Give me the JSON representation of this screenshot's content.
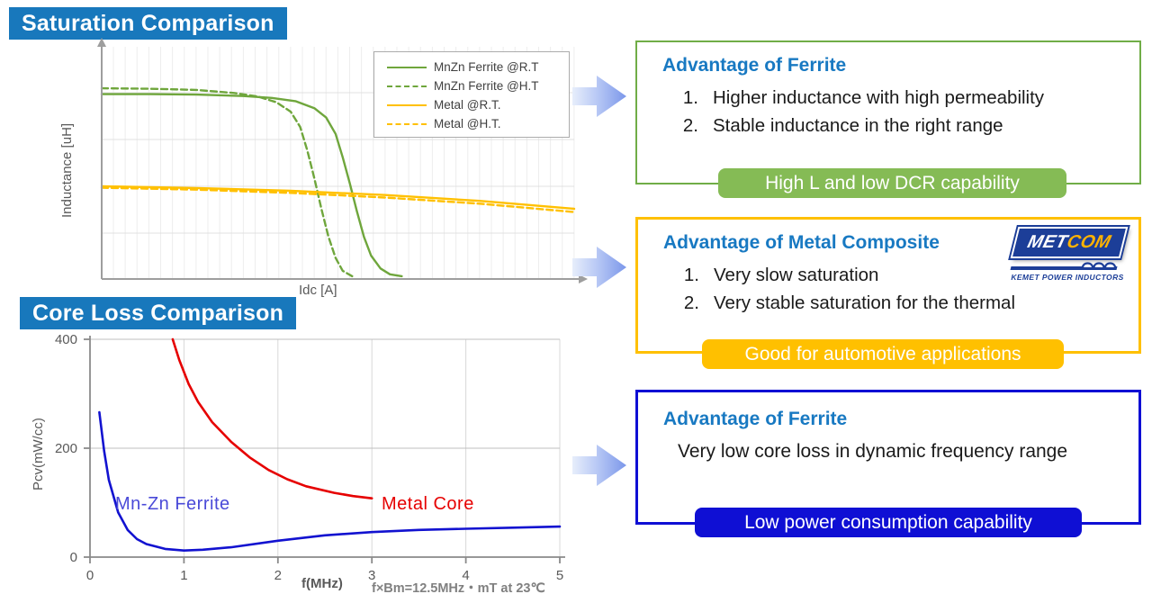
{
  "banners": {
    "saturation": "Saturation Comparison",
    "core_loss": "Core Loss Comparison"
  },
  "colors": {
    "banner_blue": "#1878bc",
    "heading_blue": "#1879c2",
    "green_accent": "#70ad47",
    "green_badge": "#85bb55",
    "yellow_accent": "#ffc000",
    "deep_blue_accent": "#0f0fd4",
    "ferrite_curve_green": "#6fa63c",
    "metal_curve_yellow": "#ffc000",
    "core_loss_blue": "#1212d0",
    "core_loss_red": "#e60000"
  },
  "saturation_chart": {
    "ylabel": "Inductance [uH]",
    "xlabel": "Idc [A]",
    "legend": [
      {
        "label": "MnZn Ferrite @R.T",
        "color": "#6fa63c",
        "dash": false
      },
      {
        "label": "MnZn Ferrite @H.T",
        "color": "#6fa63c",
        "dash": true
      },
      {
        "label": "Metal @R.T.",
        "color": "#ffc000",
        "dash": false
      },
      {
        "label": "Metal @H.T.",
        "color": "#ffc000",
        "dash": true
      }
    ]
  },
  "core_loss_chart": {
    "ylabel": "Pcv(mW/cc)",
    "xlabel": "f(MHz)",
    "note": "f×Bm=12.5MHz・mT at 23℃",
    "annotations": [
      {
        "text": "Mn-Zn Ferrite",
        "color": "#4a4ad8"
      },
      {
        "text": "Metal Core",
        "color": "#e60000"
      }
    ]
  },
  "boxes": [
    {
      "title": "Advantage of Ferrite",
      "accent": "#70ad47",
      "items": [
        {
          "num": "1.",
          "text": "Higher inductance with high permeability"
        },
        {
          "num": "2.",
          "text": "Stable inductance in the right range"
        }
      ],
      "badge": "High L and low DCR capability"
    },
    {
      "title": "Advantage of Metal Composite",
      "accent": "#ffc000",
      "items": [
        {
          "num": "1.",
          "text": "Very slow saturation"
        },
        {
          "num": "2.",
          "text": "Very stable saturation for the thermal"
        }
      ],
      "badge": "Good for automotive applications"
    },
    {
      "title": "Advantage of Ferrite",
      "accent": "#0f0fd4",
      "body": "Very low core loss in dynamic frequency range",
      "badge": "Low power consumption capability"
    }
  ],
  "logo": {
    "met": "MET",
    "com": "COM",
    "tagline": "KEMET POWER INDUCTORS"
  },
  "chart_data": [
    {
      "type": "line",
      "title": "Saturation Comparison",
      "xlabel": "Idc [A]",
      "ylabel": "Inductance [uH]",
      "xlim": [
        0,
        10
      ],
      "ylim": [
        0,
        100
      ],
      "xticks": [],
      "yticks": [],
      "grid": true,
      "legend_position": "top-right",
      "note": "axes are unlabeled (qualitative); values normalized 0-100 inductance, 0-10 Idc",
      "series": [
        {
          "name": "MnZn Ferrite @R.T",
          "color": "#6fa63c",
          "dash": false,
          "x": [
            0,
            1,
            2,
            3,
            3.6,
            4.1,
            4.5,
            4.75,
            4.95,
            5.1,
            5.25,
            5.4,
            5.55,
            5.7,
            5.9,
            6.1,
            6.35
          ],
          "y": [
            79,
            79,
            78.8,
            78.2,
            77.4,
            76,
            73,
            69,
            62,
            52,
            41,
            29,
            18,
            10,
            4.5,
            2,
            1.2
          ]
        },
        {
          "name": "MnZn Ferrite @H.T",
          "color": "#6fa63c",
          "dash": true,
          "x": [
            0,
            1,
            2,
            2.8,
            3.3,
            3.7,
            4.0,
            4.2,
            4.35,
            4.5,
            4.65,
            4.8,
            4.95,
            5.1,
            5.3
          ],
          "y": [
            81.5,
            81.3,
            80.8,
            79.5,
            78,
            75.5,
            71.5,
            65,
            55,
            43,
            30,
            18,
            9,
            3.5,
            1.2
          ]
        },
        {
          "name": "Metal @R.T.",
          "color": "#ffc000",
          "dash": false,
          "x": [
            0,
            2,
            4,
            6,
            8,
            10
          ],
          "y": [
            39.6,
            38.9,
            37.7,
            35.9,
            33.4,
            30.0
          ]
        },
        {
          "name": "Metal @H.T.",
          "color": "#ffc000",
          "dash": true,
          "x": [
            0,
            2,
            4,
            6,
            8,
            10
          ],
          "y": [
            39.0,
            38.2,
            36.8,
            34.8,
            32.2,
            28.6
          ]
        }
      ]
    },
    {
      "type": "line",
      "title": "Core Loss Comparison",
      "xlabel": "f(MHz)",
      "ylabel": "Pcv(mW/cc)",
      "xlim": [
        0,
        5
      ],
      "ylim": [
        0,
        400
      ],
      "xticks": [
        0,
        1,
        2,
        3,
        4,
        5
      ],
      "yticks": [
        0,
        200,
        400
      ],
      "grid": true,
      "note": "f×Bm=12.5MHz・mT at 23℃",
      "series": [
        {
          "name": "Mn-Zn Ferrite",
          "color": "#1212d0",
          "dash": false,
          "x": [
            0.1,
            0.15,
            0.2,
            0.3,
            0.4,
            0.5,
            0.6,
            0.8,
            1.0,
            1.2,
            1.5,
            2.0,
            2.5,
            3.0,
            3.5,
            4.0,
            4.5,
            5.0
          ],
          "y": [
            266,
            195,
            142,
            82,
            50,
            33,
            24,
            15,
            12,
            13.5,
            18,
            30,
            40,
            46,
            50,
            52,
            54,
            56
          ]
        },
        {
          "name": "Metal Core",
          "color": "#e60000",
          "dash": false,
          "x": [
            0.88,
            0.95,
            1.05,
            1.15,
            1.3,
            1.5,
            1.7,
            1.9,
            2.1,
            2.3,
            2.6,
            2.8,
            3.0
          ],
          "y": [
            400,
            362,
            318,
            285,
            248,
            212,
            183,
            160,
            143,
            130,
            118,
            112,
            108
          ]
        }
      ]
    }
  ]
}
